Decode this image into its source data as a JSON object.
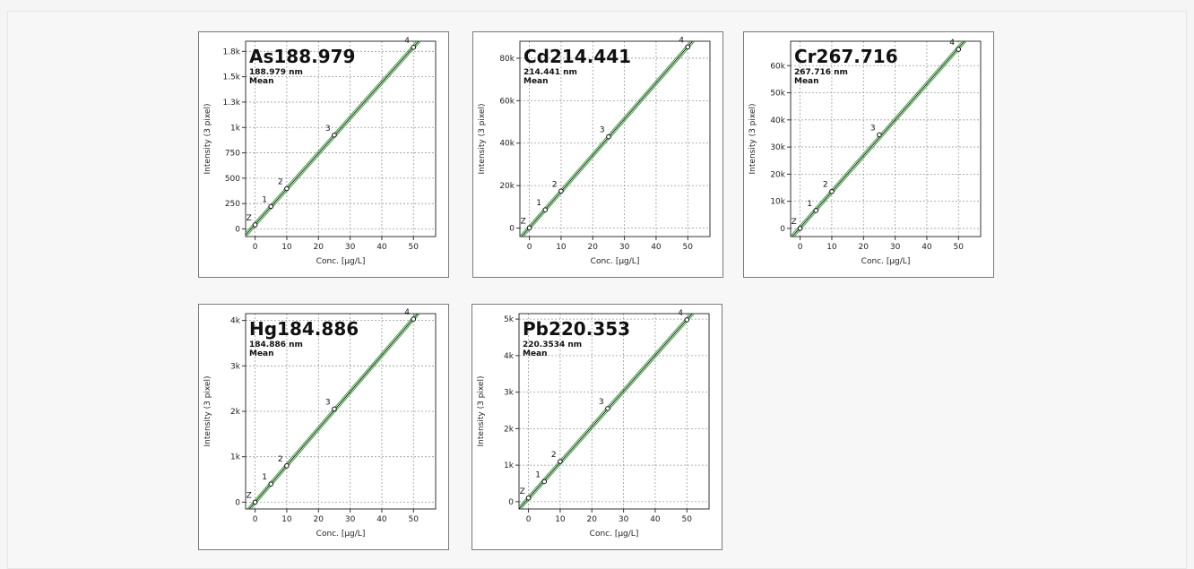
{
  "colors": {
    "fit": "#1a1a1a",
    "confidence": "#3aa53a",
    "grid": "#9a9a9a"
  },
  "chart_data": [
    {
      "type": "scatter",
      "title": "As188.979",
      "subtitle": "188.979 nm",
      "subtitle2": "Mean",
      "xlabel": "Conc. [µg/L]",
      "ylabel": "Intensity (3 pixel)",
      "xlim": [
        -3,
        57
      ],
      "ylim": [
        -75,
        1850
      ],
      "xticks": [
        0,
        10,
        20,
        30,
        40,
        50
      ],
      "yticks": [
        0,
        250,
        500,
        750,
        1000,
        1250,
        1500,
        1750
      ],
      "ytick_labels": [
        "0",
        "250",
        "500",
        "750",
        "1k",
        "1.3k",
        "1.5k",
        "1.8k"
      ],
      "grid": true,
      "points": [
        {
          "label": "Z",
          "x": 0,
          "y": 40
        },
        {
          "label": "1",
          "x": 5,
          "y": 222
        },
        {
          "label": "2",
          "x": 10,
          "y": 397
        },
        {
          "label": "3",
          "x": 25,
          "y": 925
        },
        {
          "label": "4",
          "x": 50,
          "y": 1790
        }
      ]
    },
    {
      "type": "scatter",
      "title": "Cd214.441",
      "subtitle": "214.441 nm",
      "subtitle2": "Mean",
      "xlabel": "Conc. [µg/L]",
      "ylabel": "Intensity (3 pixel)",
      "xlim": [
        -3,
        57
      ],
      "ylim": [
        -4000,
        88000
      ],
      "xticks": [
        0,
        10,
        20,
        30,
        40,
        50
      ],
      "yticks": [
        0,
        20000,
        40000,
        60000,
        80000
      ],
      "ytick_labels": [
        "0",
        "20k",
        "40k",
        "60k",
        "80k"
      ],
      "grid": true,
      "points": [
        {
          "label": "Z",
          "x": 0,
          "y": 100
        },
        {
          "label": "1",
          "x": 5,
          "y": 8600
        },
        {
          "label": "2",
          "x": 10,
          "y": 17400
        },
        {
          "label": "3",
          "x": 25,
          "y": 43000
        },
        {
          "label": "4",
          "x": 50,
          "y": 85300
        }
      ]
    },
    {
      "type": "scatter",
      "title": "Cr267.716",
      "subtitle": "267.716 nm",
      "subtitle2": "Mean",
      "xlabel": "Conc. [µg/L]",
      "ylabel": "Intensity (3 pixel)",
      "xlim": [
        -3,
        57
      ],
      "ylim": [
        -3000,
        69000
      ],
      "xticks": [
        0,
        10,
        20,
        30,
        40,
        50
      ],
      "yticks": [
        0,
        10000,
        20000,
        30000,
        40000,
        50000,
        60000
      ],
      "ytick_labels": [
        "0",
        "10k",
        "20k",
        "30k",
        "40k",
        "50k",
        "60k"
      ],
      "grid": true,
      "points": [
        {
          "label": "Z",
          "x": 0,
          "y": 0
        },
        {
          "label": "1",
          "x": 5,
          "y": 6600
        },
        {
          "label": "2",
          "x": 10,
          "y": 13600
        },
        {
          "label": "3",
          "x": 25,
          "y": 34500
        },
        {
          "label": "4",
          "x": 50,
          "y": 66000
        }
      ]
    },
    {
      "type": "scatter",
      "title": "Hg184.886",
      "subtitle": "184.886 nm",
      "subtitle2": "Mean",
      "xlabel": "Conc. [µg/L]",
      "ylabel": "Intensity (3 pixel)",
      "xlim": [
        -3,
        57
      ],
      "ylim": [
        -150,
        4150
      ],
      "xticks": [
        0,
        10,
        20,
        30,
        40,
        50
      ],
      "yticks": [
        0,
        1000,
        2000,
        3000,
        4000
      ],
      "ytick_labels": [
        "0",
        "1k",
        "2k",
        "3k",
        "4k"
      ],
      "grid": true,
      "points": [
        {
          "label": "Z",
          "x": 0,
          "y": 0
        },
        {
          "label": "1",
          "x": 5,
          "y": 400
        },
        {
          "label": "2",
          "x": 10,
          "y": 800
        },
        {
          "label": "3",
          "x": 25,
          "y": 2050
        },
        {
          "label": "4",
          "x": 50,
          "y": 4030
        }
      ]
    },
    {
      "type": "scatter",
      "title": "Pb220.353",
      "subtitle": "220.3534 nm",
      "subtitle2": "Mean",
      "xlabel": "Conc. [µg/L]",
      "ylabel": "Intensity (3 pixel)",
      "xlim": [
        -3,
        57
      ],
      "ylim": [
        -200,
        5150
      ],
      "xticks": [
        0,
        10,
        20,
        30,
        40,
        50
      ],
      "yticks": [
        0,
        1000,
        2000,
        3000,
        4000,
        5000
      ],
      "ytick_labels": [
        "0",
        "1k",
        "2k",
        "3k",
        "4k",
        "5k"
      ],
      "grid": true,
      "points": [
        {
          "label": "Z",
          "x": 0,
          "y": 100
        },
        {
          "label": "1",
          "x": 5,
          "y": 550
        },
        {
          "label": "2",
          "x": 10,
          "y": 1100
        },
        {
          "label": "3",
          "x": 25,
          "y": 2550
        },
        {
          "label": "4",
          "x": 50,
          "y": 4980
        }
      ]
    }
  ]
}
